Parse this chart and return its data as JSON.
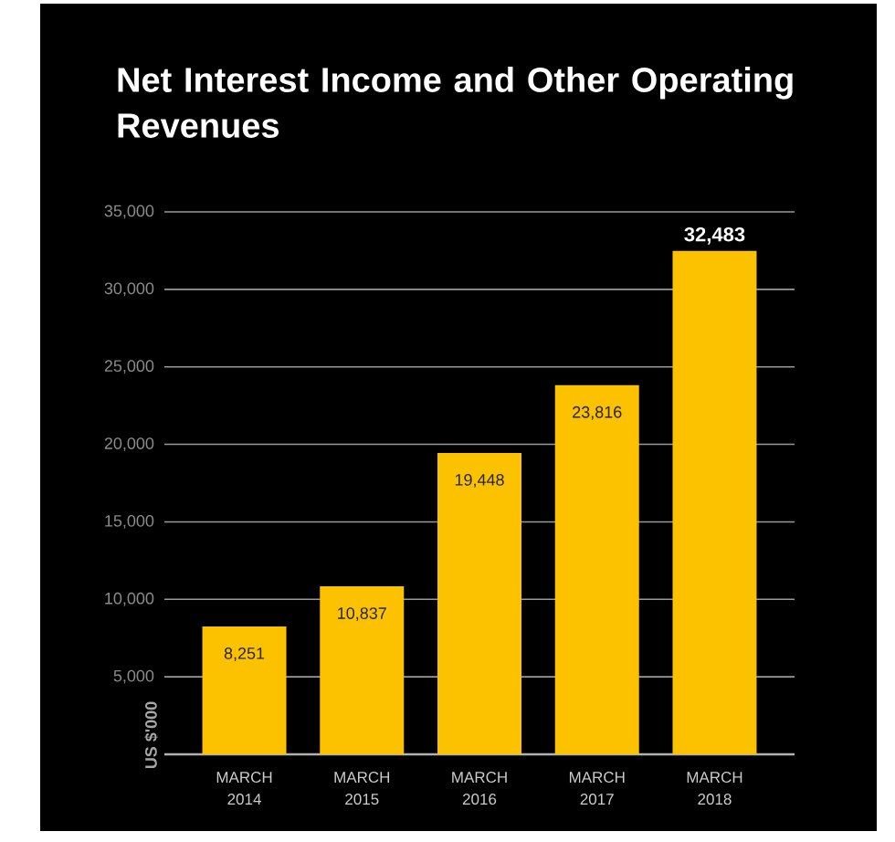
{
  "chart_data": {
    "type": "bar",
    "title": "Net Interest Income and Other Operating Revenues",
    "ylabel": "US $'000",
    "categories": [
      "MARCH 2014",
      "MARCH 2015",
      "MARCH 2016",
      "MARCH 2017",
      "MARCH 2018"
    ],
    "values": [
      8251,
      10837,
      19448,
      23816,
      32483
    ],
    "value_labels": [
      "8,251",
      "10,837",
      "19,448",
      "23,816",
      "32,483"
    ],
    "color": "#fcc200",
    "ylim": [
      0,
      35000
    ],
    "yticks": [
      {
        "value": 5000,
        "label": "5,000"
      },
      {
        "value": 10000,
        "label": "10,000"
      },
      {
        "value": 15000,
        "label": "15,000"
      },
      {
        "value": 20000,
        "label": "20,000"
      },
      {
        "value": 25000,
        "label": "25,000"
      },
      {
        "value": 30000,
        "label": "30,000"
      },
      {
        "value": 35000,
        "label": "35,000"
      }
    ],
    "grid": "y"
  }
}
